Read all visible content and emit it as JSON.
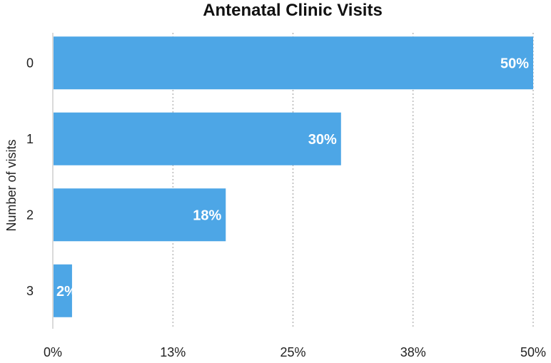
{
  "chart_data": {
    "type": "bar",
    "orientation": "horizontal",
    "title": "Antenatal Clinic Visits",
    "xlabel": "",
    "ylabel": "Number of visits",
    "categories": [
      "0",
      "1",
      "2",
      "3"
    ],
    "values": [
      50,
      30,
      18,
      2
    ],
    "data_labels": [
      "50%",
      "30%",
      "18%",
      "2%"
    ],
    "xlim": [
      0,
      50
    ],
    "x_ticks": [
      0,
      12.5,
      25,
      37.5,
      50
    ],
    "x_tick_labels": [
      "0%",
      "13%",
      "25%",
      "38%",
      "50%"
    ],
    "grid": true,
    "legend": "none",
    "colors": {
      "bar": "#4da6e6",
      "label": "#ffffff",
      "text": "#222222"
    }
  }
}
